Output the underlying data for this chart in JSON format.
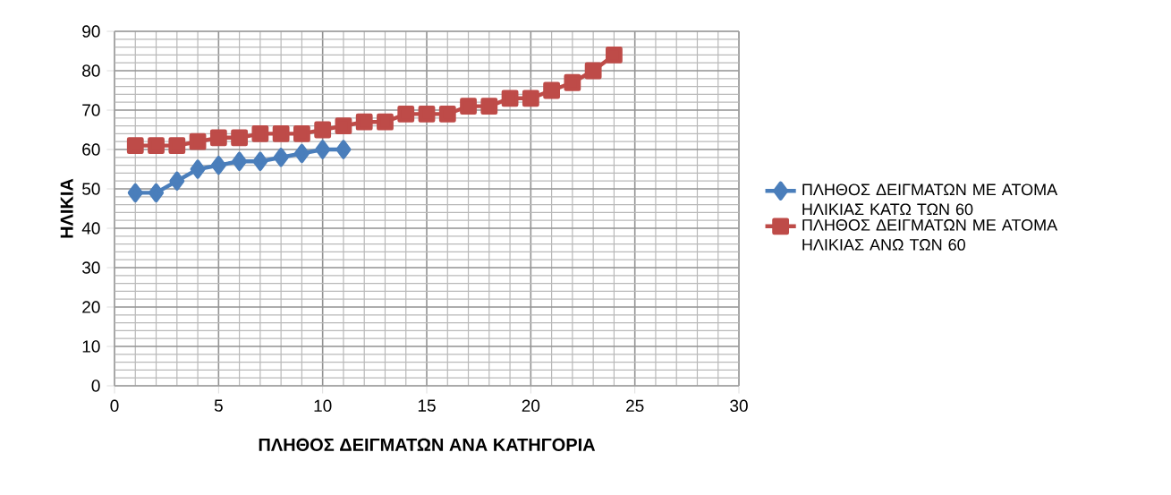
{
  "chart_data": {
    "type": "line",
    "xlabel": "ΠΛΗΘΟΣ ΔΕΙΓΜΑΤΩΝ ΑΝΑ ΚΑΤΗΓΟΡΙΑ",
    "ylabel": "ΗΛΙΚΙΑ",
    "x": [
      1,
      2,
      3,
      4,
      5,
      6,
      7,
      8,
      9,
      10,
      11,
      12,
      13,
      14,
      15,
      16,
      17,
      18,
      19,
      20,
      21,
      22,
      23,
      24
    ],
    "series": [
      {
        "name": "ΠΛΗΘΟΣ ΔΕΙΓΜΑΤΩΝ ΜΕ ΑΤΟΜΑ ΗΛΙΚΙΑΣ ΚΑΤΩ ΤΩΝ 60",
        "color": "#4a7ebb",
        "marker": "diamond",
        "x": [
          1,
          2,
          3,
          4,
          5,
          6,
          7,
          8,
          9,
          10,
          11
        ],
        "values": [
          49,
          49,
          52,
          55,
          56,
          57,
          57,
          58,
          59,
          60,
          60
        ]
      },
      {
        "name": "ΠΛΗΘΟΣ ΔΕΙΓΜΑΤΩΝ ΜΕ ΑΤΟΜΑ ΗΛΙΚΙΑΣ ΑΝΩ ΤΩΝ 60",
        "color": "#be4b48",
        "marker": "square",
        "values": [
          61,
          61,
          61,
          62,
          63,
          63,
          64,
          64,
          64,
          65,
          66,
          67,
          67,
          69,
          69,
          69,
          71,
          71,
          73,
          73,
          75,
          77,
          80,
          84
        ]
      }
    ],
    "xlim": [
      0,
      30
    ],
    "xticks": [
      0,
      5,
      10,
      15,
      20,
      25,
      30
    ],
    "ylim": [
      0,
      90
    ],
    "yticks": [
      0,
      10,
      20,
      30,
      40,
      50,
      60,
      70,
      80,
      90
    ],
    "grid": true,
    "legend": "right",
    "line_style": "solid"
  }
}
